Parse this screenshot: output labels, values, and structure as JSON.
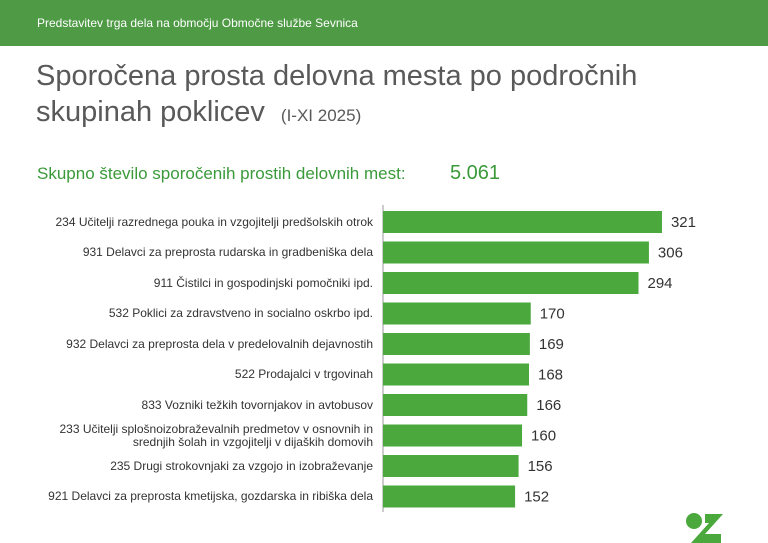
{
  "header": "Predstavitev trga dela na območju Območne službe Sevnica",
  "chart_data": {
    "type": "bar",
    "orientation": "horizontal",
    "title": "Sporočena prosta delovna mesta po področnih skupinah poklicev",
    "period": "(I-XI 2025)",
    "subtitle": "Skupno število sporočenih prostih delovnih mest:",
    "total": "5.061",
    "categories": [
      "234 Učitelji razrednega pouka in vzgojitelji predšolskih otrok",
      "931 Delavci za preprosta rudarska in gradbeniška dela",
      "911 Čistilci in gospodinjski pomočniki ipd.",
      "532 Poklici za zdravstveno in socialno oskrbo ipd.",
      "932 Delavci za preprosta dela v predelovalnih dejavnostih",
      "522 Prodajalci v trgovinah",
      "833 Vozniki težkih tovornjakov in avtobusov",
      "233 Učitelji splošnoizobraževalnih predmetov v osnovnih in\nsrednjih šolah in vzgojitelji v dijaških domovih",
      "235 Drugi strokovnjaki za vzgojo in izobraževanje",
      "921 Delavci za preprosta kmetijska, gozdarska in ribiška dela"
    ],
    "values": [
      321,
      306,
      294,
      170,
      169,
      168,
      166,
      160,
      156,
      152
    ],
    "color": "#4aa83c"
  }
}
